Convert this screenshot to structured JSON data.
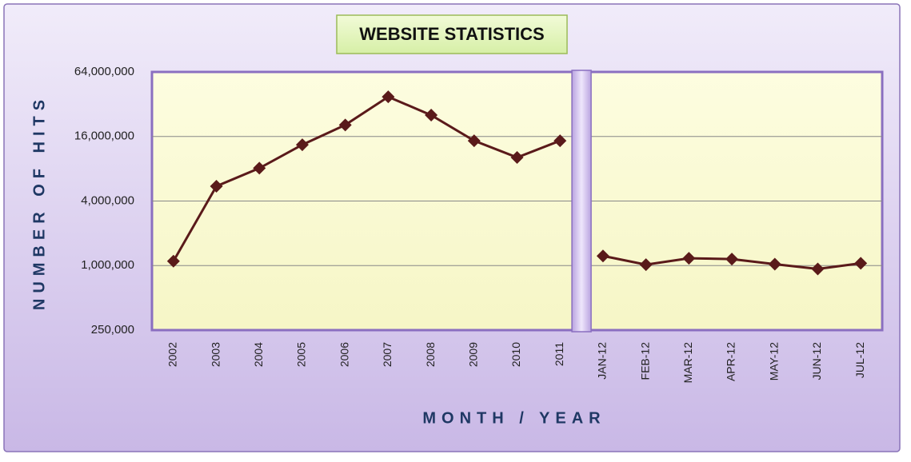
{
  "chart_data": {
    "type": "line",
    "title": "WEBSITE STATISTICS",
    "x_label": "MONTH / YEAR",
    "y_label": "NUMBER OF HITS",
    "categories": [
      "2002",
      "2003",
      "2004",
      "2005",
      "2006",
      "2007",
      "2008",
      "2009",
      "2010",
      "2011",
      "JAN-12",
      "FEB-12",
      "MAR-12",
      "APR-12",
      "MAY-12",
      "JUN-12",
      "JUL-12"
    ],
    "series": [
      {
        "color": "#5a1a1a",
        "values": [
          1100000,
          5500000,
          8100000,
          13400000,
          20500000,
          37500000,
          25300000,
          14600000,
          10200000,
          14600000,
          null,
          null,
          null,
          null,
          null,
          null,
          null
        ]
      },
      {
        "color": "#5a1a1a",
        "values": [
          null,
          null,
          null,
          null,
          null,
          null,
          null,
          null,
          null,
          null,
          1230000,
          1020000,
          1170000,
          1150000,
          1030000,
          930000,
          1050000
        ]
      }
    ],
    "log_scale": true,
    "ylim": [
      250000,
      64000000
    ],
    "yticks": [
      {
        "value": 250000,
        "label": "250,000"
      },
      {
        "value": 1000000,
        "label": "1,000,000"
      },
      {
        "value": 4000000,
        "label": "4,000,000"
      },
      {
        "value": 16000000,
        "label": "16,000,000"
      },
      {
        "value": 64000000,
        "label": "64,000,000"
      }
    ],
    "grid": true
  }
}
